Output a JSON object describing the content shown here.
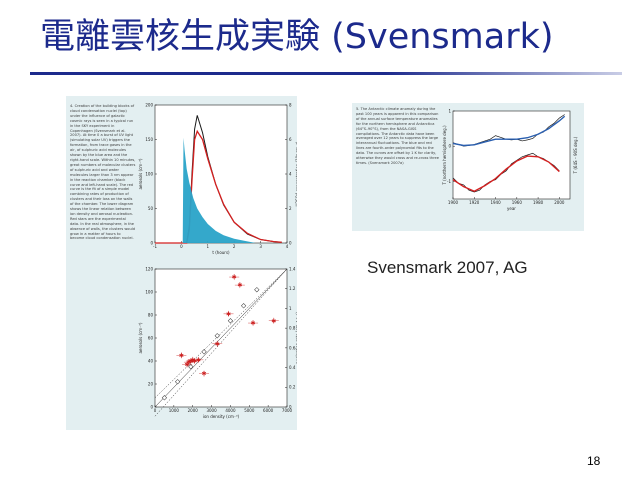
{
  "slide": {
    "title": "電離雲核生成実験 (Svensmark)",
    "source_label": "Svensmark 2007, AG",
    "page_number": "18"
  },
  "figure_a": {
    "caption": "4. Creation of the building blocks of cloud condensation nuclei (top) under the influence of galactic cosmic rays is seen in a typical run in the SKY experiment in Copenhagen (Svensmark et al. 2007). At time 0 a burst of UV light (simulating solar UV) triggers the formation, from trace gases in the air, of sulphuric acid molecules shown by the blue area and the right-hand scale. Within 10 minutes, great numbers of molecular clusters of sulphuric acid and water molecules larger than 3 nm appear in the reaction chamber (black curve and left-hand scale). The red curve is the fit of a simple model combining rates of production of clusters and their loss on the walls of the chamber. The lower diagram shows the linear relation between ion density and aerosol nucleation. Red stars are the experimental data. In the real atmosphere, in the absence of walls, the clusters would grow in a matter of hours to become cloud condensation nuclei."
  },
  "figure_b": {
    "caption": "5. The Antarctic climate anomaly during the past 100 years is apparent in this comparison of the annual surface temperature anomalies for the northern hemisphere and Antarctica (64°S–90°S), from the NASA-GISS compilations. The Antarctic data have been averaged over 12 years to suppress the large interannual fluctuations. The blue and red lines are fourth-order polynomial fits to the data. The curves are offset by 1 K for clarity, otherwise they would cross and re-cross three times. (Svensmark 2007a)"
  },
  "chart_data": [
    {
      "type": "line",
      "xlabel": "t (hours)",
      "ylabel": "aerosols (cm⁻³)",
      "ylabel_right": "H2SO4 concentration (10⁸ cm⁻³)",
      "xlim": [
        -1,
        4
      ],
      "ylim": [
        0,
        200
      ],
      "ylim_right": [
        0,
        8
      ],
      "xticks": [
        -1,
        0,
        1,
        2,
        3,
        4
      ],
      "yticks": [
        0,
        50,
        100,
        150,
        200
      ],
      "yticks_right": [
        0,
        2,
        4,
        6,
        8
      ],
      "series": [
        {
          "x": [
            -1,
            -0.5,
            0.2,
            0.3,
            0.4,
            0.5,
            0.6,
            0.8,
            1.0,
            1.3,
            1.6,
            2.0,
            2.5,
            3.0,
            3.5,
            3.8
          ],
          "values": [
            0,
            0,
            0,
            25,
            100,
            165,
            185,
            160,
            125,
            85,
            55,
            30,
            13,
            5,
            2,
            1
          ],
          "color": "#1a1a1a"
        },
        {
          "x": [
            -1,
            -0.5,
            0.2,
            0.3,
            0.4,
            0.5,
            0.6,
            0.8,
            1.0,
            1.3,
            1.6,
            2.0,
            2.5,
            3.0,
            3.5,
            3.8
          ],
          "values": [
            0,
            0,
            0,
            20,
            90,
            150,
            162,
            150,
            122,
            85,
            56,
            30,
            14,
            5,
            2,
            1
          ],
          "color": "#d42020"
        },
        {
          "x": [
            0.05,
            0.08,
            0.12,
            0.2,
            0.3,
            0.45,
            0.6,
            0.8,
            1.0,
            1.3,
            1.6,
            2.0,
            2.4,
            2.8
          ],
          "values": [
            0,
            6.1,
            5.4,
            4.3,
            3.5,
            2.6,
            2.0,
            1.5,
            1.1,
            0.7,
            0.45,
            0.25,
            0.12,
            0
          ],
          "axis": "right",
          "fill": "#29a3c8"
        }
      ]
    },
    {
      "type": "scatter",
      "xlabel": "ion density (cm⁻³)",
      "ylabel": "aerosols (cm⁻³)",
      "ylabel_right": "nucleation rate (cm⁻³ s⁻¹)",
      "xlim": [
        0,
        7000
      ],
      "ylim": [
        0,
        120
      ],
      "ylim_right": [
        0,
        1.4
      ],
      "xticks": [
        0,
        1000,
        2000,
        3000,
        4000,
        5000,
        6000,
        7000
      ],
      "yticks": [
        0,
        20,
        40,
        60,
        80,
        100,
        120
      ],
      "yticks_right": [
        0,
        0.2,
        0.4,
        0.6,
        0.8,
        1.0,
        1.2,
        1.4
      ],
      "series": [
        {
          "marker": "star",
          "color": "#cc1f1f",
          "x": [
            1400,
            1700,
            1800,
            1900,
            2000,
            2100,
            2300,
            2600,
            3300,
            3900,
            4200,
            4500,
            5200,
            6300
          ],
          "values": [
            45,
            37,
            39,
            40,
            41,
            40,
            41,
            29,
            55,
            81,
            113,
            106,
            73,
            75
          ]
        },
        {
          "marker": "diamond",
          "color": "#333333",
          "x": [
            500,
            1200,
            1900,
            2600,
            3300,
            4000,
            4700,
            5400
          ],
          "values": [
            8,
            22,
            35,
            48,
            62,
            75,
            88,
            102
          ]
        }
      ]
    },
    {
      "type": "line",
      "xlabel": "year",
      "ylabel": "T (northern hemisphere deg.)",
      "ylabel_right": "T (64S – 90S deg.)",
      "xlim": [
        1900,
        2010
      ],
      "xticks": [
        1900,
        1920,
        1940,
        1960,
        1980,
        2000
      ],
      "ylim": [
        -1.5,
        1
      ],
      "yticks": [
        -1,
        0,
        1
      ],
      "yticks_right": [
        0,
        -1
      ],
      "series": [
        {
          "color": "#1a1a1a",
          "x": [
            1900,
            1905,
            1910,
            1915,
            1920,
            1925,
            1930,
            1935,
            1940,
            1945,
            1950,
            1955,
            1960,
            1965,
            1970,
            1975,
            1980,
            1985,
            1990,
            1995,
            2000,
            2005
          ],
          "values": [
            0.1,
            0.05,
            0.0,
            0.02,
            0.05,
            0.1,
            0.15,
            0.2,
            0.3,
            0.25,
            0.2,
            0.18,
            0.2,
            0.15,
            0.18,
            0.22,
            0.35,
            0.4,
            0.55,
            0.65,
            0.8,
            0.9
          ]
        },
        {
          "color": "#2a5fb0",
          "x": [
            1900,
            1910,
            1920,
            1930,
            1940,
            1950,
            1960,
            1970,
            1980,
            1990,
            2000,
            2005
          ],
          "values": [
            0.08,
            0.02,
            0.04,
            0.12,
            0.2,
            0.2,
            0.2,
            0.24,
            0.34,
            0.5,
            0.72,
            0.85
          ]
        },
        {
          "color": "#1a1a1a",
          "x": [
            1900,
            1905,
            1910,
            1915,
            1920,
            1925,
            1930,
            1935,
            1940,
            1945,
            1950,
            1955,
            1960,
            1965,
            1970,
            1975,
            1980,
            1985,
            1990,
            1995,
            2000
          ],
          "values": [
            -0.9,
            -1.05,
            -1.1,
            -1.25,
            -1.3,
            -1.25,
            -1.1,
            -1.0,
            -0.95,
            -0.8,
            -0.7,
            -0.5,
            -0.4,
            -0.3,
            -0.25,
            -0.2,
            -0.3,
            -0.35,
            -0.45,
            -0.55,
            -0.7
          ]
        },
        {
          "color": "#d42020",
          "x": [
            1900,
            1910,
            1920,
            1930,
            1940,
            1950,
            1960,
            1970,
            1980,
            1990,
            2000
          ],
          "values": [
            -0.95,
            -1.15,
            -1.28,
            -1.12,
            -0.92,
            -0.65,
            -0.42,
            -0.28,
            -0.3,
            -0.45,
            -0.72
          ]
        }
      ]
    }
  ]
}
